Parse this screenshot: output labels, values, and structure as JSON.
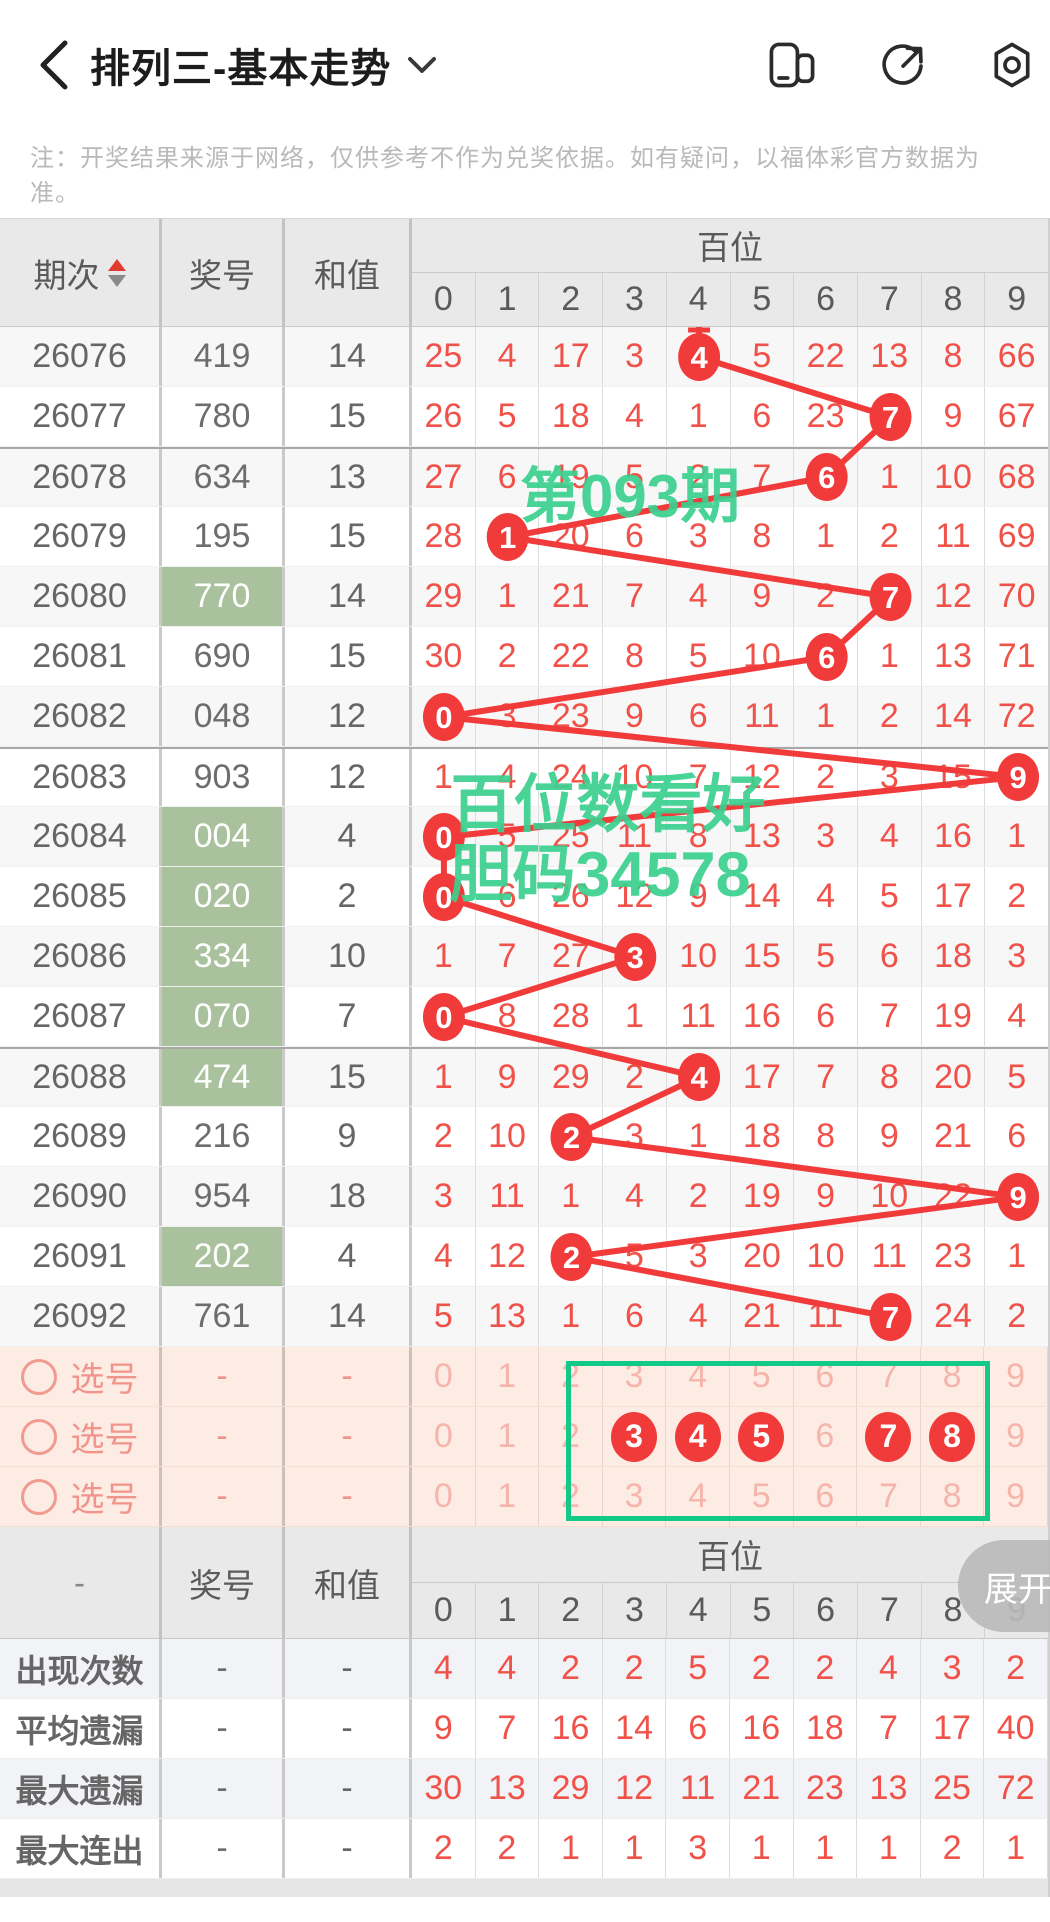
{
  "topbar": {
    "title": "排列三-基本走势",
    "icons": {
      "back": "chevron-left",
      "dropdown": "chevron-down",
      "window": "split-screen",
      "share": "share-arrow",
      "settings": "settings-nut"
    }
  },
  "note": "注：开奖结果来源于网络，仅供参考不作为兑奖依据。如有疑问，以福体彩官方数据为准。",
  "table": {
    "headers": {
      "period": "期次",
      "number": "奖号",
      "sum": "和值",
      "section": "百位"
    },
    "digits": [
      "0",
      "1",
      "2",
      "3",
      "4",
      "5",
      "6",
      "7",
      "8",
      "9"
    ],
    "rows": [
      {
        "period": "26076",
        "number": "419",
        "sum": "14",
        "hit": 4,
        "highlight": false,
        "cells": [
          "25",
          "4",
          "17",
          "3",
          "4",
          "5",
          "22",
          "13",
          "8",
          "66"
        ]
      },
      {
        "period": "26077",
        "number": "780",
        "sum": "15",
        "hit": 7,
        "highlight": false,
        "cells": [
          "26",
          "5",
          "18",
          "4",
          "1",
          "6",
          "23",
          "7",
          "9",
          "67"
        ]
      },
      {
        "period": "26078",
        "number": "634",
        "sum": "13",
        "hit": 6,
        "highlight": false,
        "cells": [
          "27",
          "6",
          "19",
          "5",
          "2",
          "7",
          "6",
          "1",
          "10",
          "68"
        ]
      },
      {
        "period": "26079",
        "number": "195",
        "sum": "15",
        "hit": 1,
        "highlight": false,
        "cells": [
          "28",
          "1",
          "20",
          "6",
          "3",
          "8",
          "1",
          "2",
          "11",
          "69"
        ]
      },
      {
        "period": "26080",
        "number": "770",
        "sum": "14",
        "hit": 7,
        "highlight": true,
        "cells": [
          "29",
          "1",
          "21",
          "7",
          "4",
          "9",
          "2",
          "7",
          "12",
          "70"
        ]
      },
      {
        "period": "26081",
        "number": "690",
        "sum": "15",
        "hit": 6,
        "highlight": false,
        "cells": [
          "30",
          "2",
          "22",
          "8",
          "5",
          "10",
          "6",
          "1",
          "13",
          "71"
        ]
      },
      {
        "period": "26082",
        "number": "048",
        "sum": "12",
        "hit": 0,
        "highlight": false,
        "cells": [
          "0",
          "3",
          "23",
          "9",
          "6",
          "11",
          "1",
          "2",
          "14",
          "72"
        ]
      },
      {
        "period": "26083",
        "number": "903",
        "sum": "12",
        "hit": 9,
        "highlight": false,
        "cells": [
          "1",
          "4",
          "24",
          "10",
          "7",
          "12",
          "2",
          "3",
          "15",
          "9"
        ]
      },
      {
        "period": "26084",
        "number": "004",
        "sum": "4",
        "hit": 0,
        "highlight": true,
        "cells": [
          "0",
          "5",
          "25",
          "11",
          "8",
          "13",
          "3",
          "4",
          "16",
          "1"
        ]
      },
      {
        "period": "26085",
        "number": "020",
        "sum": "2",
        "hit": 0,
        "highlight": true,
        "cells": [
          "0",
          "6",
          "26",
          "12",
          "9",
          "14",
          "4",
          "5",
          "17",
          "2"
        ]
      },
      {
        "period": "26086",
        "number": "334",
        "sum": "10",
        "hit": 3,
        "highlight": true,
        "cells": [
          "1",
          "7",
          "27",
          "3",
          "10",
          "15",
          "5",
          "6",
          "18",
          "3"
        ]
      },
      {
        "period": "26087",
        "number": "070",
        "sum": "7",
        "hit": 0,
        "highlight": true,
        "cells": [
          "0",
          "8",
          "28",
          "1",
          "11",
          "16",
          "6",
          "7",
          "19",
          "4"
        ]
      },
      {
        "period": "26088",
        "number": "474",
        "sum": "15",
        "hit": 4,
        "highlight": true,
        "cells": [
          "1",
          "9",
          "29",
          "2",
          "4",
          "17",
          "7",
          "8",
          "20",
          "5"
        ]
      },
      {
        "period": "26089",
        "number": "216",
        "sum": "9",
        "hit": 2,
        "highlight": false,
        "cells": [
          "2",
          "10",
          "2",
          "3",
          "1",
          "18",
          "8",
          "9",
          "21",
          "6"
        ]
      },
      {
        "period": "26090",
        "number": "954",
        "sum": "18",
        "hit": 9,
        "highlight": false,
        "cells": [
          "3",
          "11",
          "1",
          "4",
          "2",
          "19",
          "9",
          "10",
          "22",
          "9"
        ]
      },
      {
        "period": "26091",
        "number": "202",
        "sum": "4",
        "hit": 2,
        "highlight": true,
        "cells": [
          "4",
          "12",
          "2",
          "5",
          "3",
          "20",
          "10",
          "11",
          "23",
          "1"
        ]
      },
      {
        "period": "26092",
        "number": "761",
        "sum": "14",
        "hit": 7,
        "highlight": false,
        "cells": [
          "5",
          "13",
          "1",
          "6",
          "4",
          "21",
          "11",
          "7",
          "24",
          "2"
        ]
      }
    ]
  },
  "watermarks": [
    "第093期",
    "百位数看好",
    "胆码34578"
  ],
  "selection": {
    "label": "选号",
    "dash": "-",
    "rows": [
      {
        "circled": []
      },
      {
        "circled": [
          3,
          4,
          5,
          7,
          8
        ]
      },
      {
        "circled": []
      }
    ]
  },
  "stats": {
    "header": {
      "period": "-",
      "number": "奖号",
      "sum": "和值",
      "section": "百位"
    },
    "dash": "-",
    "rows": [
      {
        "label": "出现次数",
        "color": "red",
        "values": [
          "4",
          "4",
          "2",
          "2",
          "5",
          "2",
          "2",
          "4",
          "3",
          "2"
        ]
      },
      {
        "label": "平均遗漏",
        "color": "red",
        "values": [
          "9",
          "7",
          "16",
          "14",
          "6",
          "16",
          "18",
          "7",
          "17",
          "40"
        ]
      },
      {
        "label": "最大遗漏",
        "color": "blue",
        "values": [
          "30",
          "13",
          "29",
          "12",
          "11",
          "21",
          "23",
          "13",
          "25",
          "72"
        ]
      },
      {
        "label": "最大连出",
        "color": "dark",
        "values": [
          "2",
          "2",
          "1",
          "1",
          "3",
          "1",
          "1",
          "1",
          "2",
          "1"
        ]
      }
    ]
  },
  "expand_button": "展开",
  "colors": {
    "accent_red": "#f13b3b",
    "miss_red": "#f0524a",
    "green_cell": "#a9c19c",
    "watermark_green": "#3bd08f",
    "box_green": "#12c987",
    "pink_bg": "#fdece4",
    "pink_text": "#f1958c",
    "stat_red": "#a83a32",
    "stat_blue": "#4a72c0",
    "stat_dark": "#44525e"
  }
}
